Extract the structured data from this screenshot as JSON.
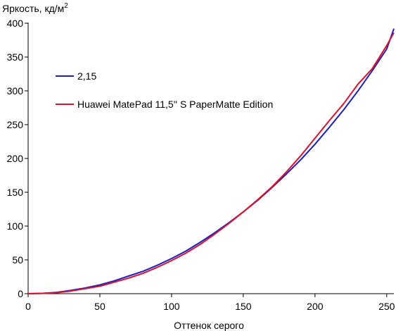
{
  "chart_data": {
    "type": "line",
    "ylabel": "Яркость, кд/м",
    "ylabel_sup": "2",
    "xlabel": "Оттенок серого",
    "xlim": [
      0,
      255
    ],
    "ylim": [
      0,
      400
    ],
    "x_ticks": [
      0,
      50,
      100,
      150,
      200,
      250
    ],
    "y_ticks": [
      0,
      50,
      100,
      150,
      200,
      250,
      300,
      350,
      400
    ],
    "grid": false,
    "legend_position": "top-left",
    "series": [
      {
        "name": "2,15",
        "color": "#1f1fbf",
        "x": [
          0,
          10,
          20,
          30,
          40,
          50,
          60,
          70,
          80,
          90,
          100,
          110,
          120,
          130,
          140,
          150,
          160,
          170,
          180,
          190,
          200,
          210,
          220,
          230,
          240,
          250,
          255
        ],
        "y": [
          0,
          0.5,
          2,
          5,
          8.5,
          13,
          19,
          26,
          33,
          42,
          52,
          63,
          76,
          90,
          105,
          121,
          138,
          157,
          177,
          198,
          221,
          246,
          272,
          300,
          330,
          362,
          392
        ]
      },
      {
        "name": "Huawei MatePad 11,5'' S PaperMatte Edition",
        "color": "#e0102a",
        "x": [
          0,
          10,
          20,
          30,
          40,
          50,
          60,
          70,
          80,
          90,
          100,
          110,
          120,
          130,
          140,
          150,
          160,
          170,
          180,
          190,
          200,
          210,
          220,
          230,
          240,
          250,
          255
        ],
        "y": [
          0,
          0.4,
          1.5,
          4,
          7.5,
          11,
          17,
          23,
          30,
          39,
          49,
          60,
          73,
          88,
          104,
          121,
          139,
          158,
          180,
          204,
          230,
          256,
          281,
          310,
          333,
          367,
          386
        ]
      }
    ]
  }
}
